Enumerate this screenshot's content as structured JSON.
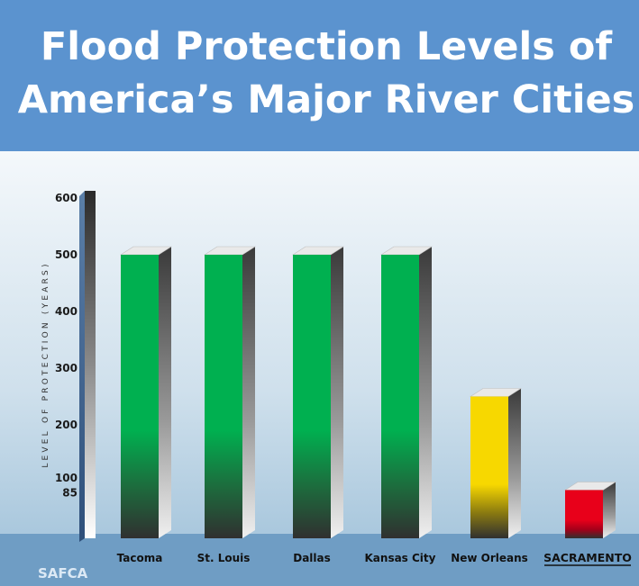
{
  "chart_data": {
    "type": "bar",
    "title": [
      "Flood Protection Levels of",
      "America’s Major River Cities"
    ],
    "ylabel": "LEVEL OF PROTECTION (YEARS)",
    "xlabel": "",
    "categories": [
      "Tacoma",
      "St. Louis",
      "Dallas",
      "Kansas City",
      "New Orleans",
      "SACRAMENTO"
    ],
    "values": [
      500,
      500,
      500,
      500,
      250,
      85
    ],
    "bar_colors": [
      "#00b050",
      "#00b050",
      "#00b050",
      "#00b050",
      "#f7d800",
      "#e8001a"
    ],
    "yticks": [
      600,
      500,
      400,
      300,
      200,
      100,
      85
    ],
    "ylim": [
      0,
      600
    ],
    "grid": false,
    "highlight_category": "SACRAMENTO"
  },
  "credit": "SAFCA"
}
